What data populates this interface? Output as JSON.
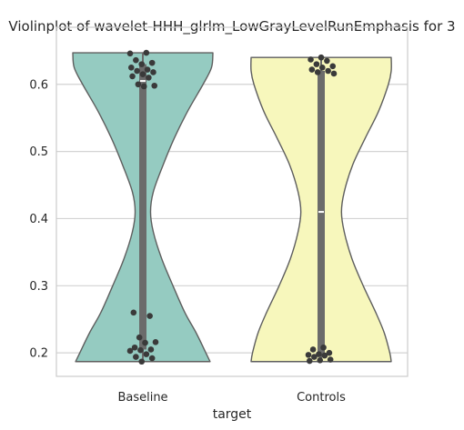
{
  "chart_data": {
    "type": "violin",
    "title": "Violinplot of wavelet-HHH_glrlm_LowGrayLevelRunEmphasis for 3",
    "xlabel": "target",
    "ylabel": "",
    "categories": [
      "Baseline",
      "Controls"
    ],
    "ylim": [
      0.165,
      0.685
    ],
    "yticks": [
      0.2,
      0.3,
      0.4,
      0.5,
      0.6
    ],
    "ytick_labels": [
      "0.2",
      "0.3",
      "0.4",
      "0.5",
      "0.6"
    ],
    "grid": "horizontal",
    "colors": {
      "violin_fills": [
        "#95cbc1",
        "#f7f7bc"
      ],
      "outline": "#5e5e5e",
      "box": "#6b6b6b",
      "points": "#3a3a3a",
      "median": "#ffffff",
      "grid": "#d3d3d3",
      "frame": "#cccccc"
    },
    "violins": [
      {
        "category": "Baseline",
        "min": 0.187,
        "max": 0.647,
        "q1": 0.205,
        "median": 0.605,
        "q3": 0.63,
        "profile": [
          [
            0.187,
            0.96
          ],
          [
            0.2,
            0.9
          ],
          [
            0.23,
            0.76
          ],
          [
            0.26,
            0.6
          ],
          [
            0.3,
            0.43
          ],
          [
            0.34,
            0.27
          ],
          [
            0.38,
            0.15
          ],
          [
            0.41,
            0.11
          ],
          [
            0.44,
            0.15
          ],
          [
            0.48,
            0.29
          ],
          [
            0.52,
            0.45
          ],
          [
            0.56,
            0.64
          ],
          [
            0.6,
            0.86
          ],
          [
            0.625,
            0.98
          ],
          [
            0.647,
            1.0
          ]
        ],
        "points": [
          0.646,
          0.647,
          0.636,
          0.632,
          0.63,
          0.625,
          0.622,
          0.62,
          0.618,
          0.615,
          0.612,
          0.61,
          0.6,
          0.598,
          0.597,
          0.26,
          0.255,
          0.223,
          0.216,
          0.215,
          0.208,
          0.205,
          0.204,
          0.203,
          0.198,
          0.194,
          0.192,
          0.187
        ]
      },
      {
        "category": "Controls",
        "min": 0.187,
        "max": 0.64,
        "q1": 0.197,
        "median": 0.41,
        "q3": 0.62,
        "profile": [
          [
            0.187,
            1.0
          ],
          [
            0.2,
            0.98
          ],
          [
            0.23,
            0.9
          ],
          [
            0.26,
            0.78
          ],
          [
            0.3,
            0.6
          ],
          [
            0.34,
            0.44
          ],
          [
            0.38,
            0.33
          ],
          [
            0.41,
            0.29
          ],
          [
            0.44,
            0.33
          ],
          [
            0.48,
            0.45
          ],
          [
            0.52,
            0.63
          ],
          [
            0.56,
            0.82
          ],
          [
            0.6,
            0.96
          ],
          [
            0.62,
            1.0
          ],
          [
            0.64,
            1.0
          ]
        ],
        "points": [
          0.64,
          0.637,
          0.635,
          0.63,
          0.627,
          0.625,
          0.622,
          0.62,
          0.618,
          0.616,
          0.208,
          0.205,
          0.2,
          0.198,
          0.197,
          0.196,
          0.194,
          0.19,
          0.189,
          0.188
        ]
      }
    ]
  }
}
